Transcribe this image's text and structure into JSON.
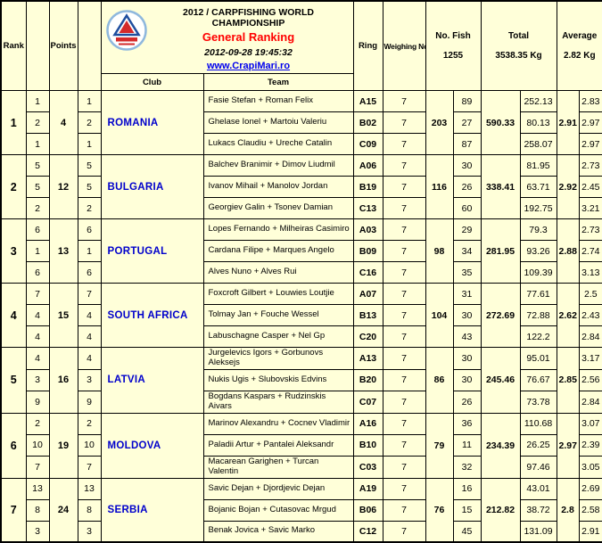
{
  "header": {
    "championship": "2012 / CARPFISHING WORLD CHAMPIONSHIP",
    "ranking_title": "General Ranking",
    "timestamp": "2012-09-28 19:45:32",
    "website": "www.CrapiMari.ro"
  },
  "columns": {
    "rank": "Rank",
    "points": "Points",
    "club": "Club",
    "team": "Team",
    "ring": "Ring",
    "weighing_no": "Weighing No",
    "no_fish_label": "No. Fish",
    "no_fish_value": "1255",
    "total_label": "Total",
    "total_value": "3538.35 Kg",
    "average_label": "Average",
    "average_value": "2.82 Kg"
  },
  "colors": {
    "cell_background": "#FFFFD9",
    "club_text": "#0000CC",
    "ranking_title_text": "#FF0000",
    "link_text": "#0000EE",
    "border": "#000000"
  },
  "icons": {
    "logo": "carp-club-logo"
  },
  "countries": [
    {
      "rank": "1",
      "points": "4",
      "club": "ROMANIA",
      "fish_total": "203",
      "weight_total": "590.33",
      "avg_total": "2.91",
      "teams": [
        {
          "points": "1",
          "place": "1",
          "name": "Fasie Stefan + Roman Felix",
          "ring": "A15",
          "weighing": "7",
          "fish": "89",
          "weight": "252.13",
          "avg": "2.83"
        },
        {
          "points": "2",
          "place": "2",
          "name": "Ghelase Ionel + Martoiu Valeriu",
          "ring": "B02",
          "weighing": "7",
          "fish": "27",
          "weight": "80.13",
          "avg": "2.97"
        },
        {
          "points": "1",
          "place": "1",
          "name": "Lukacs Claudiu + Ureche Catalin",
          "ring": "C09",
          "weighing": "7",
          "fish": "87",
          "weight": "258.07",
          "avg": "2.97"
        }
      ]
    },
    {
      "rank": "2",
      "points": "12",
      "club": "BULGARIA",
      "fish_total": "116",
      "weight_total": "338.41",
      "avg_total": "2.92",
      "teams": [
        {
          "points": "5",
          "place": "5",
          "name": "Balchev Branimir + Dimov Liudmil",
          "ring": "A06",
          "weighing": "7",
          "fish": "30",
          "weight": "81.95",
          "avg": "2.73"
        },
        {
          "points": "5",
          "place": "5",
          "name": "Ivanov Mihail + Manolov Jordan",
          "ring": "B19",
          "weighing": "7",
          "fish": "26",
          "weight": "63.71",
          "avg": "2.45"
        },
        {
          "points": "2",
          "place": "2",
          "name": "Georgiev Galin + Tsonev Damian",
          "ring": "C13",
          "weighing": "7",
          "fish": "60",
          "weight": "192.75",
          "avg": "3.21"
        }
      ]
    },
    {
      "rank": "3",
      "points": "13",
      "club": "PORTUGAL",
      "fish_total": "98",
      "weight_total": "281.95",
      "avg_total": "2.88",
      "teams": [
        {
          "points": "6",
          "place": "6",
          "name": "Lopes Fernando + Milheiras Casimiro",
          "ring": "A03",
          "weighing": "7",
          "fish": "29",
          "weight": "79.3",
          "avg": "2.73"
        },
        {
          "points": "1",
          "place": "1",
          "name": "Cardana Filipe + Marques Angelo",
          "ring": "B09",
          "weighing": "7",
          "fish": "34",
          "weight": "93.26",
          "avg": "2.74"
        },
        {
          "points": "6",
          "place": "6",
          "name": "Alves Nuno + Alves Rui",
          "ring": "C16",
          "weighing": "7",
          "fish": "35",
          "weight": "109.39",
          "avg": "3.13"
        }
      ]
    },
    {
      "rank": "4",
      "points": "15",
      "club": "SOUTH AFRICA",
      "fish_total": "104",
      "weight_total": "272.69",
      "avg_total": "2.62",
      "teams": [
        {
          "points": "7",
          "place": "7",
          "name": "Foxcroft Gilbert + Louwies Loutjie",
          "ring": "A07",
          "weighing": "7",
          "fish": "31",
          "weight": "77.61",
          "avg": "2.5"
        },
        {
          "points": "4",
          "place": "4",
          "name": "Tolmay Jan + Fouche Wessel",
          "ring": "B13",
          "weighing": "7",
          "fish": "30",
          "weight": "72.88",
          "avg": "2.43"
        },
        {
          "points": "4",
          "place": "4",
          "name": "Labuschagne Casper + Nel Gp",
          "ring": "C20",
          "weighing": "7",
          "fish": "43",
          "weight": "122.2",
          "avg": "2.84"
        }
      ]
    },
    {
      "rank": "5",
      "points": "16",
      "club": "LATVIA",
      "fish_total": "86",
      "weight_total": "245.46",
      "avg_total": "2.85",
      "teams": [
        {
          "points": "4",
          "place": "4",
          "name": "Jurgelevics Igors + Gorbunovs Aleksejs",
          "ring": "A13",
          "weighing": "7",
          "fish": "30",
          "weight": "95.01",
          "avg": "3.17"
        },
        {
          "points": "3",
          "place": "3",
          "name": "Nukis Ugis + Slubovskis Edvins",
          "ring": "B20",
          "weighing": "7",
          "fish": "30",
          "weight": "76.67",
          "avg": "2.56"
        },
        {
          "points": "9",
          "place": "9",
          "name": "Bogdans Kaspars + Rudzinskis Aivars",
          "ring": "C07",
          "weighing": "7",
          "fish": "26",
          "weight": "73.78",
          "avg": "2.84"
        }
      ]
    },
    {
      "rank": "6",
      "points": "19",
      "club": "MOLDOVA",
      "fish_total": "79",
      "weight_total": "234.39",
      "avg_total": "2.97",
      "teams": [
        {
          "points": "2",
          "place": "2",
          "name": "Marinov Alexandru + Cocnev Vladimir",
          "ring": "A16",
          "weighing": "7",
          "fish": "36",
          "weight": "110.68",
          "avg": "3.07"
        },
        {
          "points": "10",
          "place": "10",
          "name": "Paladii Artur + Pantalei Aleksandr",
          "ring": "B10",
          "weighing": "7",
          "fish": "11",
          "weight": "26.25",
          "avg": "2.39"
        },
        {
          "points": "7",
          "place": "7",
          "name": "Macarean Garighen + Turcan Valentin",
          "ring": "C03",
          "weighing": "7",
          "fish": "32",
          "weight": "97.46",
          "avg": "3.05"
        }
      ]
    },
    {
      "rank": "7",
      "points": "24",
      "club": "SERBIA",
      "fish_total": "76",
      "weight_total": "212.82",
      "avg_total": "2.8",
      "teams": [
        {
          "points": "13",
          "place": "13",
          "name": "Savic Dejan + Djordjevic Dejan",
          "ring": "A19",
          "weighing": "7",
          "fish": "16",
          "weight": "43.01",
          "avg": "2.69"
        },
        {
          "points": "8",
          "place": "8",
          "name": "Bojanic Bojan + Cutasovac Mrgud",
          "ring": "B06",
          "weighing": "7",
          "fish": "15",
          "weight": "38.72",
          "avg": "2.58"
        },
        {
          "points": "3",
          "place": "3",
          "name": "Benak Jovica + Savic Marko",
          "ring": "C12",
          "weighing": "7",
          "fish": "45",
          "weight": "131.09",
          "avg": "2.91"
        }
      ]
    }
  ]
}
